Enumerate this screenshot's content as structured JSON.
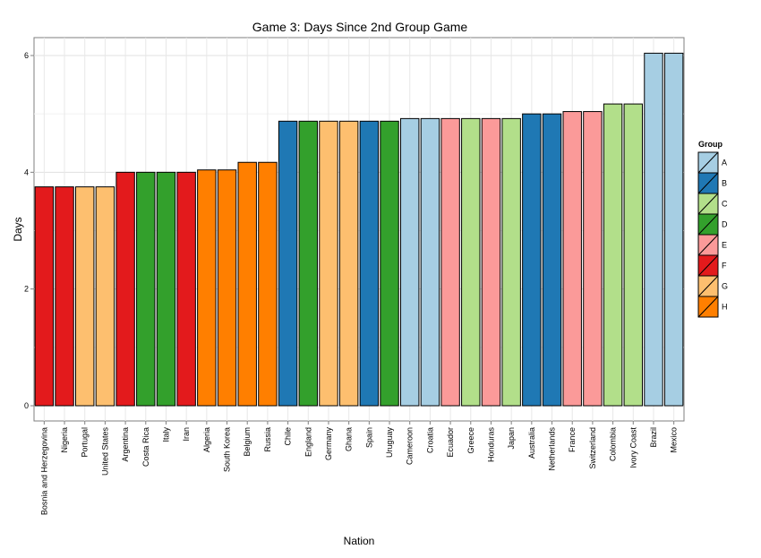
{
  "chart_data": {
    "type": "bar",
    "title": "Game 3: Days Since 2nd Group Game",
    "xlabel": "Nation",
    "ylabel": "Days",
    "ylim": [
      0,
      6.2
    ],
    "yticks": [
      0,
      2,
      4,
      6
    ],
    "grid": true,
    "legend": {
      "title": "Group",
      "placement": "right",
      "entries": [
        {
          "label": "A",
          "color": "#a6cee3"
        },
        {
          "label": "B",
          "color": "#1f78b4"
        },
        {
          "label": "C",
          "color": "#b2df8a"
        },
        {
          "label": "D",
          "color": "#33a02c"
        },
        {
          "label": "E",
          "color": "#fb9a99"
        },
        {
          "label": "F",
          "color": "#e31a1c"
        },
        {
          "label": "G",
          "color": "#fdbf6f"
        },
        {
          "label": "H",
          "color": "#ff7f00"
        }
      ]
    },
    "bars": [
      {
        "nation": "Bosnia and Herzegovina",
        "group": "F",
        "value": 3.75
      },
      {
        "nation": "Nigeria",
        "group": "F",
        "value": 3.75
      },
      {
        "nation": "Portugal",
        "group": "G",
        "value": 3.75
      },
      {
        "nation": "United States",
        "group": "G",
        "value": 3.75
      },
      {
        "nation": "Argentina",
        "group": "F",
        "value": 4.0
      },
      {
        "nation": "Costa Rica",
        "group": "D",
        "value": 4.0
      },
      {
        "nation": "Italy",
        "group": "D",
        "value": 4.0
      },
      {
        "nation": "Iran",
        "group": "F",
        "value": 4.0
      },
      {
        "nation": "Algeria",
        "group": "H",
        "value": 4.04
      },
      {
        "nation": "South Korea",
        "group": "H",
        "value": 4.04
      },
      {
        "nation": "Belgium",
        "group": "H",
        "value": 4.17
      },
      {
        "nation": "Russia",
        "group": "H",
        "value": 4.17
      },
      {
        "nation": "Chile",
        "group": "B",
        "value": 4.875
      },
      {
        "nation": "England",
        "group": "D",
        "value": 4.875
      },
      {
        "nation": "Germany",
        "group": "G",
        "value": 4.875
      },
      {
        "nation": "Ghana",
        "group": "G",
        "value": 4.875
      },
      {
        "nation": "Spain",
        "group": "B",
        "value": 4.875
      },
      {
        "nation": "Uruguay",
        "group": "D",
        "value": 4.875
      },
      {
        "nation": "Cameroon",
        "group": "A",
        "value": 4.92
      },
      {
        "nation": "Croatia",
        "group": "A",
        "value": 4.92
      },
      {
        "nation": "Ecuador",
        "group": "E",
        "value": 4.92
      },
      {
        "nation": "Greece",
        "group": "C",
        "value": 4.92
      },
      {
        "nation": "Honduras",
        "group": "E",
        "value": 4.92
      },
      {
        "nation": "Japan",
        "group": "C",
        "value": 4.92
      },
      {
        "nation": "Australia",
        "group": "B",
        "value": 5.0
      },
      {
        "nation": "Netherlands",
        "group": "B",
        "value": 5.0
      },
      {
        "nation": "France",
        "group": "E",
        "value": 5.04
      },
      {
        "nation": "Switzerland",
        "group": "E",
        "value": 5.04
      },
      {
        "nation": "Colombia",
        "group": "C",
        "value": 5.17
      },
      {
        "nation": "Ivory Coast",
        "group": "C",
        "value": 5.17
      },
      {
        "nation": "Brazil",
        "group": "A",
        "value": 6.04
      },
      {
        "nation": "Mexico",
        "group": "A",
        "value": 6.04
      }
    ]
  }
}
